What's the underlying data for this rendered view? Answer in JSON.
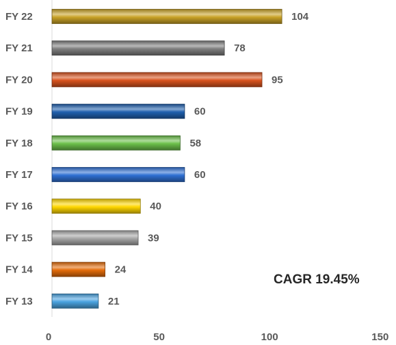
{
  "chart_data": {
    "type": "bar",
    "orientation": "horizontal",
    "categories": [
      "FY 13",
      "FY 14",
      "FY 15",
      "FY 16",
      "FY 17",
      "FY 18",
      "FY 19",
      "FY 20",
      "FY 21",
      "FY 22"
    ],
    "values": [
      21,
      24,
      39,
      40,
      60,
      58,
      60,
      95,
      78,
      104
    ],
    "bar_colors": [
      "#4aa3e0",
      "#e46c0a",
      "#a6a6a6",
      "#ffd700",
      "#2e6fd3",
      "#6cc04a",
      "#1f5fae",
      "#d9531e",
      "#7f7f7f",
      "#c9a227"
    ],
    "xlim": [
      0,
      150
    ],
    "x_ticks": [
      "0",
      "50",
      "100",
      "150"
    ],
    "annotation": "CAGR 19.45%",
    "grid": false,
    "legend": "none"
  }
}
